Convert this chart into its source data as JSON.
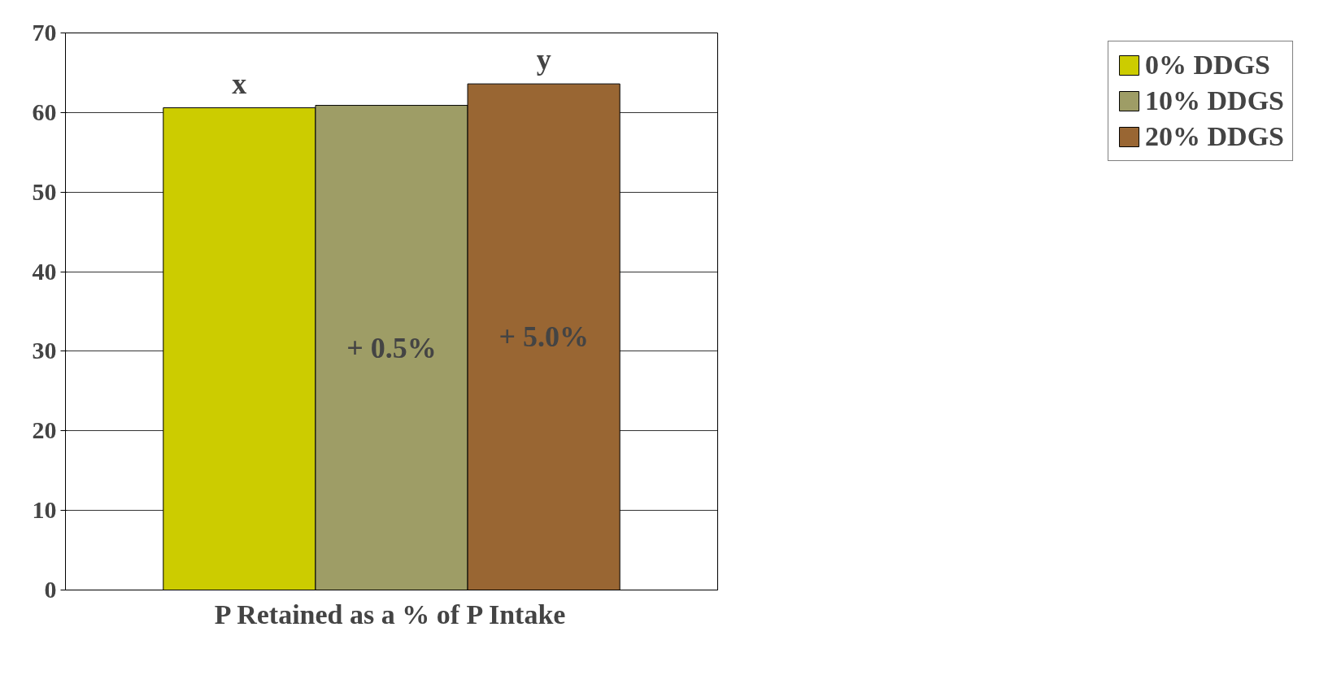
{
  "chart_data": {
    "type": "bar",
    "xlabel": "P Retained as a % of P Intake",
    "categories": [
      null
    ],
    "series": [
      {
        "name": "0% DDGS",
        "color": "#cccc00",
        "values": [
          60.6
        ]
      },
      {
        "name": "10% DDGS",
        "color": "#9e9d66",
        "values": [
          60.9
        ]
      },
      {
        "name": "20% DDGS",
        "color": "#996633",
        "values": [
          63.6
        ]
      }
    ],
    "ylim": [
      0,
      70
    ],
    "yticks": [
      0,
      10,
      20,
      30,
      40,
      50,
      60,
      70
    ],
    "grid": "y",
    "legend": "right",
    "annotations": [
      "x",
      "y",
      "+ 0.5%",
      "+ 5.0%"
    ]
  }
}
